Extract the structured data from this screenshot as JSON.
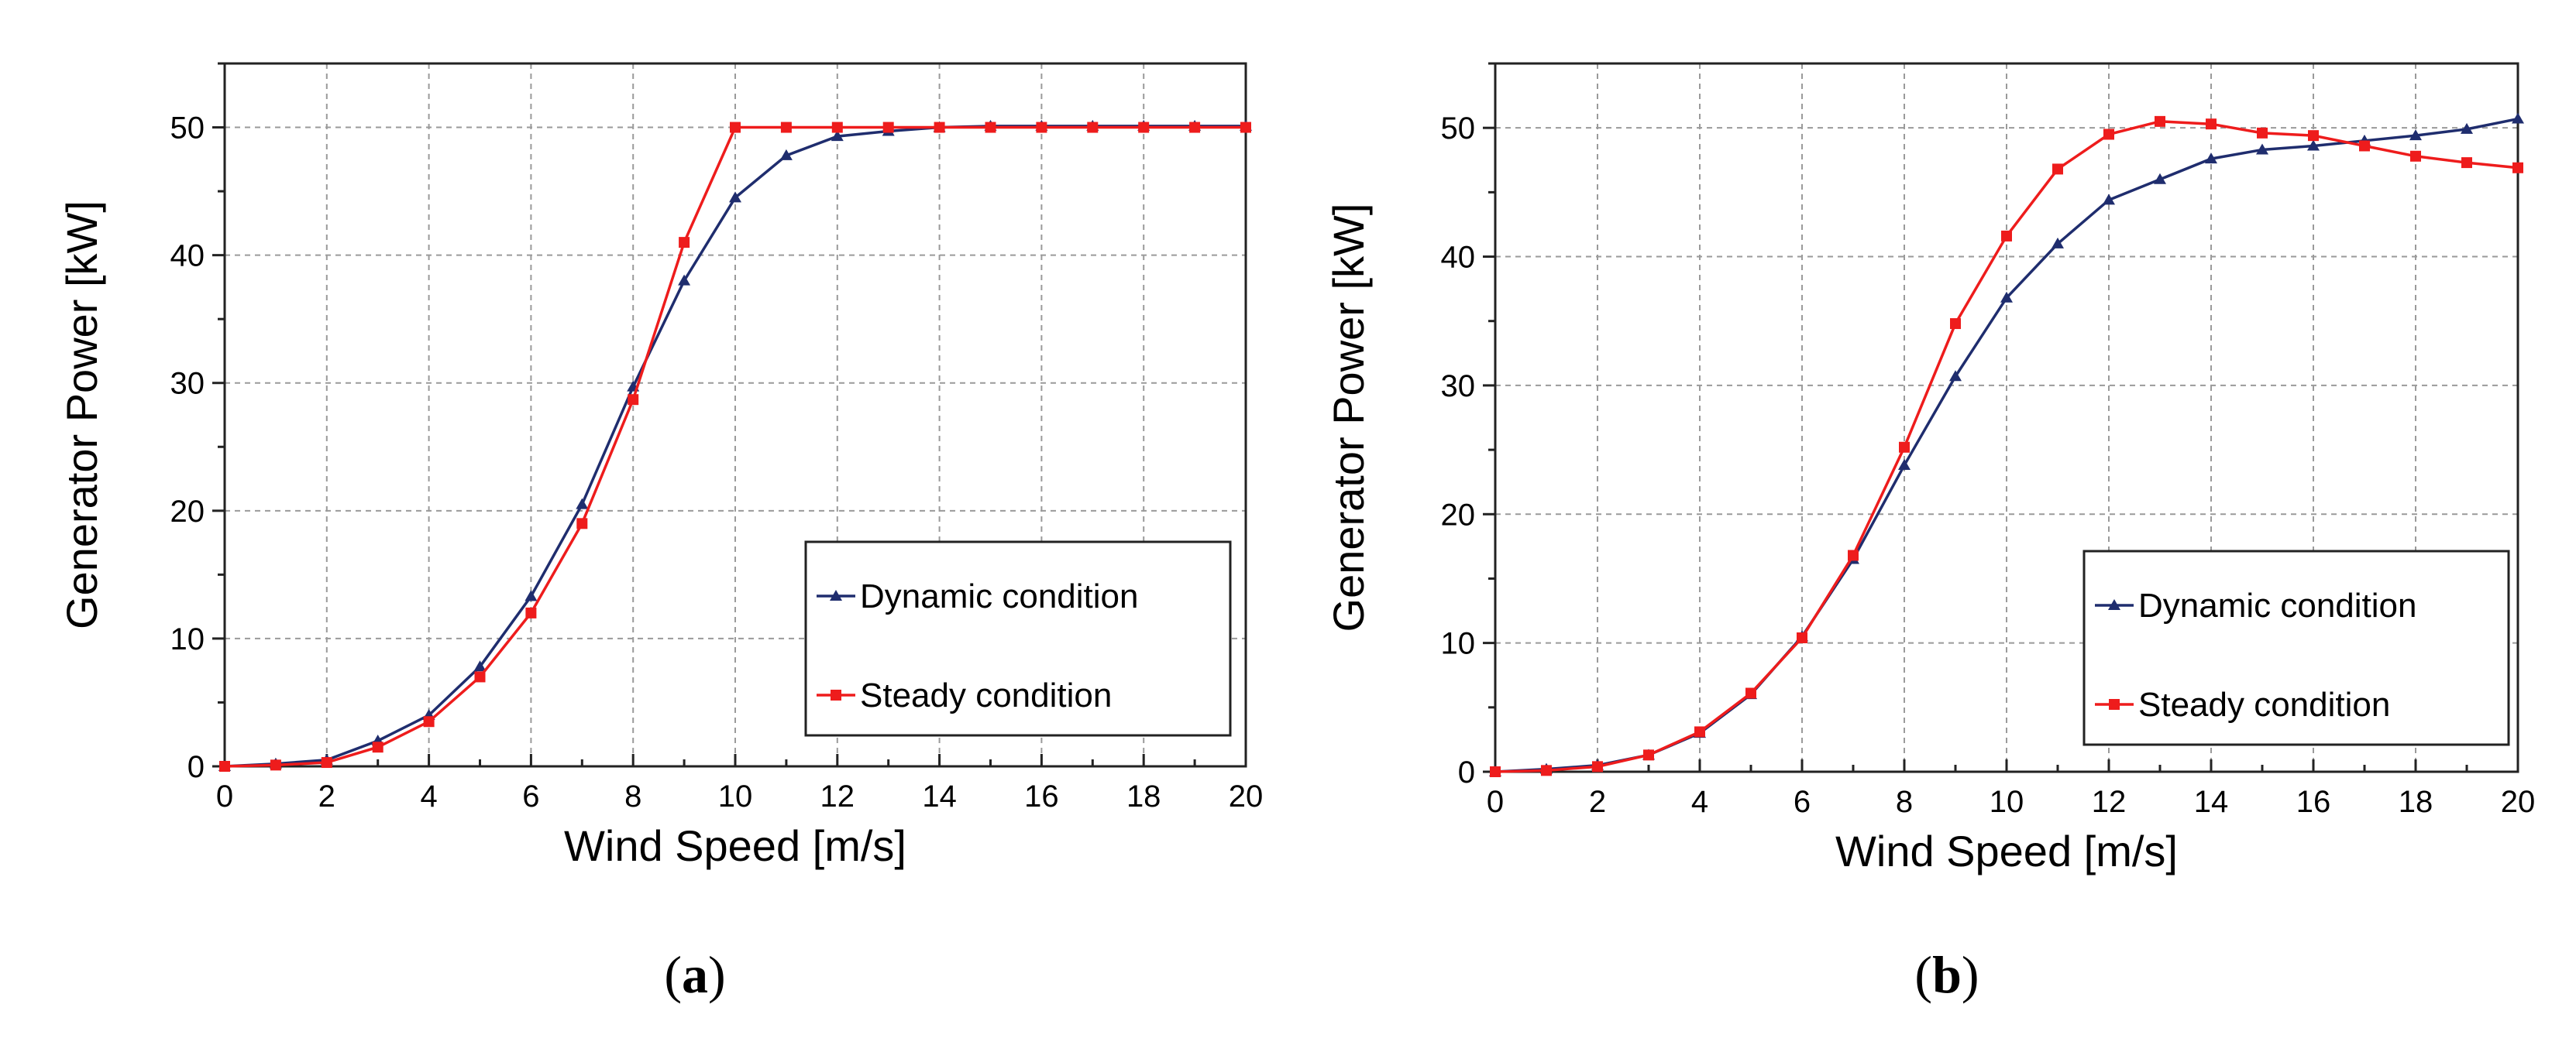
{
  "colors": {
    "dynamic": "#1f2d6e",
    "steady": "#ee1c1c",
    "grid": "#9a9a9a"
  },
  "chart_data": [
    {
      "panel": "a",
      "caption": "a",
      "type": "line",
      "xlabel": "Wind Speed [m/s]",
      "ylabel": "Generator Power [kW]",
      "xlim": [
        0,
        20
      ],
      "ylim": [
        0,
        55
      ],
      "xticks": [
        0,
        2,
        4,
        6,
        8,
        10,
        12,
        14,
        16,
        18,
        20
      ],
      "yticks": [
        0,
        10,
        20,
        30,
        40,
        50
      ],
      "grid": true,
      "legend_position": "right",
      "series": [
        {
          "name": "Dynamic condition",
          "marker": "triangle",
          "x": [
            0,
            1,
            2,
            3,
            4,
            5,
            6,
            7,
            8,
            9,
            10,
            11,
            12,
            13,
            14,
            15,
            16,
            17,
            18,
            19,
            20
          ],
          "y": [
            0,
            0.2,
            0.5,
            2,
            4,
            7.8,
            13.3,
            20.5,
            29.7,
            38,
            44.5,
            47.8,
            49.3,
            49.7,
            50,
            50.1,
            50.1,
            50.1,
            50.1,
            50.1,
            50.1
          ]
        },
        {
          "name": "Steady condition",
          "marker": "square",
          "x": [
            0,
            1,
            2,
            3,
            4,
            5,
            6,
            7,
            8,
            9,
            10,
            11,
            12,
            13,
            14,
            15,
            16,
            17,
            18,
            19,
            20
          ],
          "y": [
            0,
            0.1,
            0.3,
            1.5,
            3.5,
            7,
            12,
            19,
            28.7,
            41,
            50,
            50,
            50,
            50,
            50,
            50,
            50,
            50,
            50,
            50,
            50
          ]
        }
      ]
    },
    {
      "panel": "b",
      "caption": "b",
      "type": "line",
      "xlabel": "Wind Speed [m/s]",
      "ylabel": "Generator Power [kW]",
      "xlim": [
        0,
        20
      ],
      "ylim": [
        0,
        55
      ],
      "xticks": [
        0,
        2,
        4,
        6,
        8,
        10,
        12,
        14,
        16,
        18,
        20
      ],
      "yticks": [
        0,
        10,
        20,
        30,
        40,
        50
      ],
      "grid": true,
      "legend_position": "right",
      "series": [
        {
          "name": "Dynamic condition",
          "marker": "triangle",
          "x": [
            0,
            1,
            2,
            3,
            4,
            5,
            6,
            7,
            8,
            9,
            10,
            11,
            12,
            13,
            14,
            15,
            16,
            17,
            18,
            19,
            20
          ],
          "y": [
            0,
            0.2,
            0.5,
            1.3,
            3,
            6,
            10.5,
            16.5,
            23.8,
            30.7,
            36.8,
            41,
            44.4,
            46,
            47.6,
            48.3,
            48.6,
            49,
            49.4,
            49.9,
            50.7
          ]
        },
        {
          "name": "Steady condition",
          "marker": "square",
          "x": [
            0,
            1,
            2,
            3,
            4,
            5,
            6,
            7,
            8,
            9,
            10,
            11,
            12,
            13,
            14,
            15,
            16,
            17,
            18,
            19,
            20
          ],
          "y": [
            0,
            0.1,
            0.4,
            1.3,
            3.1,
            6.1,
            10.4,
            16.8,
            25.2,
            34.8,
            41.6,
            46.8,
            49.5,
            50.5,
            50.3,
            49.6,
            49.4,
            48.6,
            47.8,
            47.3,
            46.9
          ]
        }
      ]
    }
  ]
}
